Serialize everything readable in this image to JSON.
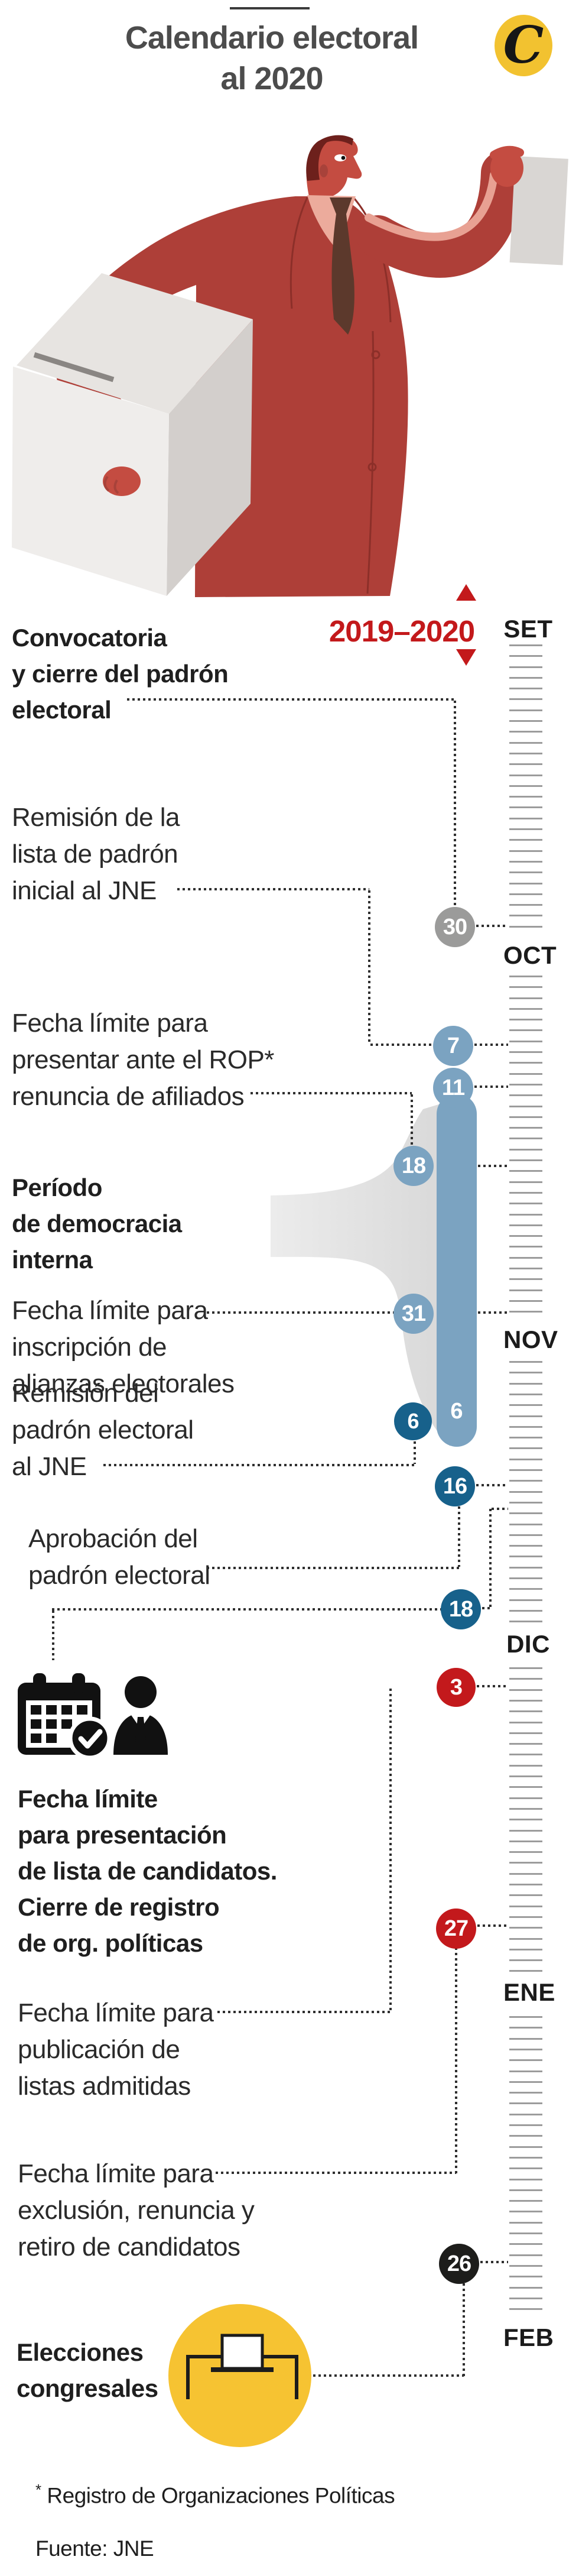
{
  "header": {
    "title_line1": "Calendario electoral",
    "title_line2": "al 2020",
    "logo_letter": "C"
  },
  "timeline": {
    "range_label": "2019–2020",
    "months": [
      "SET",
      "OCT",
      "NOV",
      "DIC",
      "ENE",
      "FEB"
    ]
  },
  "colors": {
    "accent_red": "#c3191c",
    "steel_blue": "#7ba3c1",
    "dark_blue": "#17618b",
    "gray_circle": "#9b9b9a",
    "black_circle": "#1d1d1b",
    "yellow": "#f6c332",
    "tick_gray": "#9c9c9c"
  },
  "events": [
    {
      "id": "convocatoria",
      "bold": true,
      "lines": [
        "Convocatoria",
        "y cierre del padrón",
        "electoral"
      ],
      "day": "30"
    },
    {
      "id": "remision-lista",
      "bold": false,
      "lines": [
        "Remisión de la",
        "lista de padrón",
        "inicial al JNE"
      ],
      "day": "7"
    },
    {
      "id": "renuncia-rop",
      "bold": false,
      "lines": [
        "Fecha límite para",
        "presentar ante el ROP*",
        "renuncia de afiliados"
      ],
      "day": "18"
    },
    {
      "id": "democracia-interna",
      "bold": true,
      "lines": [
        "Período",
        "de democracia",
        "interna"
      ],
      "start_day": "11",
      "end_day": "6"
    },
    {
      "id": "alianzas",
      "bold": false,
      "lines": [
        "Fecha límite para",
        "inscripción de",
        "alianzas electorales"
      ],
      "day": "31"
    },
    {
      "id": "remision-padron",
      "bold": false,
      "lines": [
        "Remisión del",
        "padrón electoral",
        "al JNE"
      ],
      "day": "6"
    },
    {
      "id": "aprobacion-padron",
      "bold": false,
      "lines": [
        "Aprobación del",
        "padrón electoral"
      ],
      "day": "16"
    },
    {
      "id": "cierre-registro",
      "bold": true,
      "lines": [
        "Fecha límite",
        "para presentación",
        "de lista de candidatos.",
        "Cierre de registro",
        "de org. políticas"
      ],
      "day": "18"
    },
    {
      "id": "publicacion-listas",
      "bold": false,
      "lines": [
        "Fecha límite para",
        "publicación de",
        "listas admitidas"
      ],
      "day": "3"
    },
    {
      "id": "exclusion",
      "bold": false,
      "lines": [
        "Fecha límite para",
        "exclusión, renuncia y",
        "retiro de candidatos"
      ],
      "day": "27"
    },
    {
      "id": "elecciones",
      "bold": true,
      "lines": [
        "Elecciones",
        "congresales"
      ],
      "day": "26"
    }
  ],
  "footnote": {
    "asterisk": "*",
    "text": "Registro de Organizaciones Políticas",
    "source": "Fuente: JNE"
  }
}
